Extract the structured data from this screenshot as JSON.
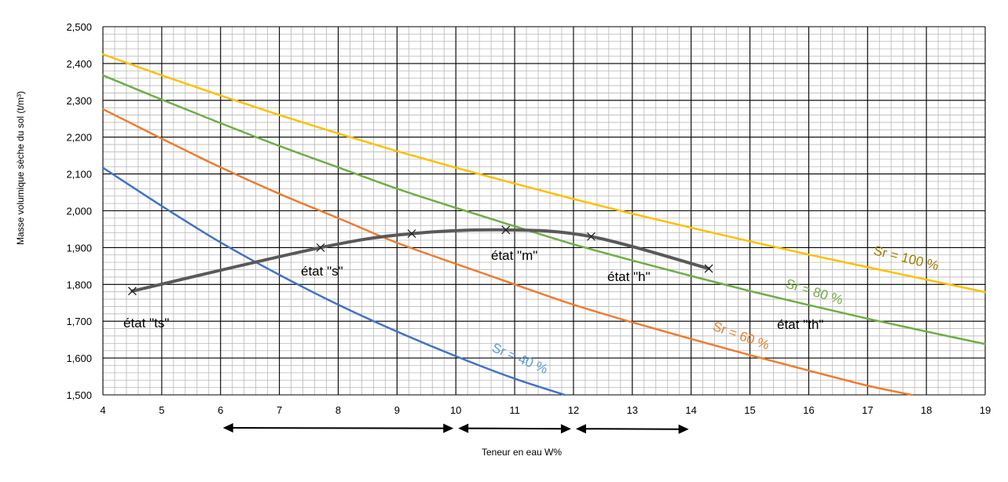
{
  "chart_data": {
    "type": "line",
    "xlabel": "Teneur en eau W%",
    "ylabel": "Masse volumique sèche du sol (t/m³)",
    "xlim": [
      4,
      19
    ],
    "ylim": [
      1.5,
      2.5
    ],
    "x_ticks": [
      "4",
      "5",
      "6",
      "7",
      "8",
      "9",
      "10",
      "11",
      "12",
      "13",
      "14",
      "15",
      "16",
      "17",
      "18",
      "19"
    ],
    "y_ticks": [
      "1,500",
      "1,600",
      "1,700",
      "1,800",
      "1,900",
      "2,000",
      "2,100",
      "2,200",
      "2,300",
      "2,400",
      "2,500"
    ],
    "grid": true,
    "series": [
      {
        "name": "Sr = 40 %",
        "color": "#4472C4",
        "x": [
          4,
          5,
          6,
          7,
          8,
          9,
          10,
          11,
          11.85
        ],
        "y": [
          2.117,
          2.013,
          1.914,
          1.826,
          1.745,
          1.672,
          1.605,
          1.544,
          1.5
        ]
      },
      {
        "name": "Sr = 60 %",
        "color": "#ED7D31",
        "x": [
          4,
          5,
          6,
          7,
          8,
          9,
          10,
          11,
          12,
          13,
          14,
          15,
          16,
          17,
          17.75
        ],
        "y": [
          2.276,
          2.196,
          2.118,
          2.046,
          1.98,
          1.913,
          1.856,
          1.8,
          1.745,
          1.697,
          1.652,
          1.608,
          1.566,
          1.525,
          1.5
        ]
      },
      {
        "name": "Sr = 80 %",
        "color": "#70AD47",
        "x": [
          4,
          5,
          6,
          7,
          8,
          9,
          10,
          11,
          12,
          13,
          14,
          15,
          16,
          17,
          18,
          19
        ],
        "y": [
          2.368,
          2.302,
          2.238,
          2.176,
          2.118,
          2.06,
          2.008,
          1.958,
          1.909,
          1.865,
          1.823,
          1.782,
          1.744,
          1.707,
          1.672,
          1.638
        ]
      },
      {
        "name": "Sr = 100 %",
        "color": "#FFC000",
        "x": [
          4,
          5,
          6,
          7,
          8,
          9,
          10,
          11,
          12,
          13,
          14,
          15,
          16,
          17,
          18,
          19
        ],
        "y": [
          2.425,
          2.368,
          2.313,
          2.26,
          2.21,
          2.162,
          2.117,
          2.074,
          2.032,
          1.992,
          1.954,
          1.917,
          1.881,
          1.847,
          1.813,
          1.779
        ]
      },
      {
        "name": "",
        "color": "#595959",
        "x": [
          4.5,
          7.7,
          9.25,
          10.85,
          12.3,
          14.3
        ],
        "y": [
          1.782,
          1.9,
          1.938,
          1.948,
          1.93,
          1.843
        ]
      }
    ],
    "annotations": {
      "etat_ts": "état \"ts\"",
      "etat_s": "état \"s\"",
      "etat_m": "état \"m\"",
      "etat_h": "état \"h\"",
      "etat_th": "état \"th\""
    },
    "ranges": [
      {
        "from": 6,
        "to": 10
      },
      {
        "from": 10,
        "to": 12
      },
      {
        "from": 12,
        "to": 14
      }
    ]
  }
}
